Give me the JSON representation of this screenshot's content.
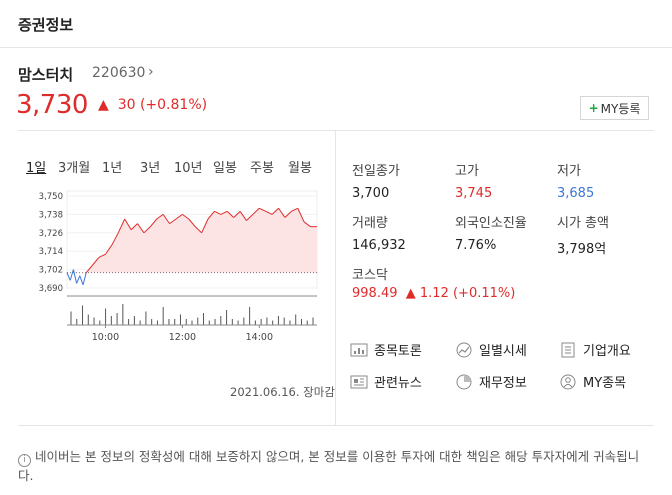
{
  "header": {
    "title": "증권정보"
  },
  "stock": {
    "name": "맘스터치",
    "code": "220630",
    "chevron": "›",
    "price": "3,730",
    "change_arrow": "▲",
    "change": "30 (+0.81%)"
  },
  "my_button": {
    "plus": "+",
    "label": "MY등록"
  },
  "tabs": [
    "1일",
    "3개월",
    "1년",
    "3년",
    "10년",
    "일봉",
    "주봉",
    "월봉"
  ],
  "chart_data": {
    "type": "line",
    "y_ticks": [
      "3,750",
      "3,738",
      "3,726",
      "3,714",
      "3,702",
      "3,690"
    ],
    "x_ticks": [
      "10:00",
      "12:00",
      "14:00"
    ],
    "ylim": [
      3690,
      3750
    ],
    "prev_close": 3700,
    "series": [
      {
        "x": [
          "09:00",
          "09:05",
          "09:10",
          "09:15",
          "09:20",
          "09:25",
          "09:30",
          "09:40",
          "09:50",
          "10:00",
          "10:10",
          "10:20",
          "10:30",
          "10:40",
          "10:50",
          "11:00",
          "11:10",
          "11:20",
          "11:30",
          "11:40",
          "11:50",
          "12:00",
          "12:10",
          "12:20",
          "12:30",
          "12:40",
          "12:50",
          "13:00",
          "13:10",
          "13:20",
          "13:30",
          "13:40",
          "13:50",
          "14:00",
          "14:10",
          "14:20",
          "14:30",
          "14:40",
          "14:50",
          "15:00",
          "15:10",
          "15:20",
          "15:30"
        ],
        "values": [
          3700,
          3695,
          3702,
          3693,
          3698,
          3692,
          3700,
          3705,
          3710,
          3712,
          3718,
          3726,
          3735,
          3728,
          3732,
          3726,
          3730,
          3735,
          3738,
          3732,
          3735,
          3738,
          3735,
          3730,
          3726,
          3735,
          3740,
          3738,
          3740,
          3736,
          3740,
          3734,
          3738,
          3742,
          3740,
          3738,
          3742,
          3736,
          3740,
          3742,
          3733,
          3730,
          3730
        ]
      }
    ],
    "volume": [
      9,
      4,
      13,
      7,
      5,
      3,
      11,
      6,
      8,
      14,
      4,
      6,
      3,
      9,
      4,
      3,
      12,
      4,
      4,
      7,
      4,
      3,
      5,
      8,
      3,
      4,
      6,
      10,
      4,
      3,
      5,
      12,
      3,
      4,
      5,
      3,
      6,
      5,
      3,
      7,
      4,
      3,
      5
    ]
  },
  "date": "2021.06.16. 장마감",
  "stats": {
    "prev_close_label": "전일종가",
    "prev_close": "3,700",
    "high_label": "고가",
    "high": "3,745",
    "low_label": "저가",
    "low": "3,685",
    "volume_label": "거래량",
    "volume": "146,932",
    "foreign_label": "외국인소진율",
    "foreign": "7.76%",
    "mcap_label": "시가 총액",
    "mcap": "3,798억"
  },
  "kosdaq": {
    "label": "코스닥",
    "value": "998.49",
    "arrow": "▲",
    "change": "1.12 (+0.11%)"
  },
  "links": [
    {
      "label": "종목토론",
      "icon": "discussion-icon"
    },
    {
      "label": "일별시세",
      "icon": "trend-icon"
    },
    {
      "label": "기업개요",
      "icon": "document-icon"
    },
    {
      "label": "관련뉴스",
      "icon": "news-icon"
    },
    {
      "label": "재무정보",
      "icon": "piechart-icon"
    },
    {
      "label": "MY종목",
      "icon": "user-icon"
    }
  ],
  "disclaimer": {
    "icon": "i",
    "text": "네이버는 본 정보의 정확성에 대해 보증하지 않으며, 본 정보를 이용한 투자에 대한 책임은 해당 투자자에게 귀속됩니다."
  },
  "colors": {
    "up": "#e02b2b",
    "down": "#3a78d8",
    "accent": "#1ea83c"
  }
}
